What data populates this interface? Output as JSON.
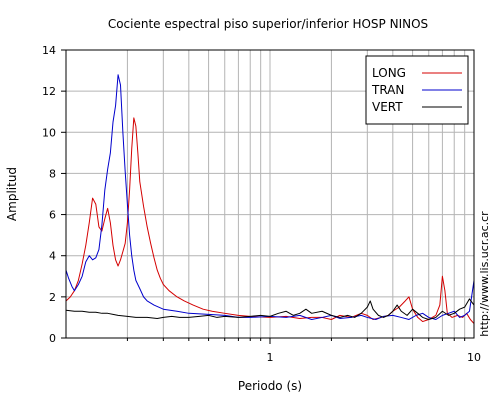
{
  "chart_data": {
    "type": "line",
    "title": "Cociente espectral piso superior/inferior  HOSP NINOS",
    "xlabel": "Periodo (s)",
    "ylabel": "Amplitud",
    "xscale": "log",
    "xlim": [
      0.1,
      10
    ],
    "ylim": [
      0,
      14
    ],
    "xticks": [
      1,
      10
    ],
    "xtick_labels": [
      "1",
      "10"
    ],
    "yticks": [
      0,
      2,
      4,
      6,
      8,
      10,
      12,
      14
    ],
    "ytick_labels": [
      "0",
      "2",
      "4",
      "6",
      "8",
      "10",
      "12",
      "14"
    ],
    "grid": true,
    "legend_position": "top-right",
    "side_text": "http://www.lis.ucr.ac.cr",
    "series": [
      {
        "name": "LONG",
        "color": "#d40000",
        "points": [
          [
            0.1,
            1.8
          ],
          [
            0.105,
            2.0
          ],
          [
            0.11,
            2.3
          ],
          [
            0.115,
            2.8
          ],
          [
            0.12,
            3.6
          ],
          [
            0.125,
            4.5
          ],
          [
            0.13,
            5.6
          ],
          [
            0.135,
            6.8
          ],
          [
            0.14,
            6.5
          ],
          [
            0.145,
            5.4
          ],
          [
            0.15,
            5.2
          ],
          [
            0.155,
            5.8
          ],
          [
            0.16,
            6.3
          ],
          [
            0.165,
            5.6
          ],
          [
            0.17,
            4.5
          ],
          [
            0.175,
            3.8
          ],
          [
            0.18,
            3.5
          ],
          [
            0.185,
            3.8
          ],
          [
            0.19,
            4.2
          ],
          [
            0.195,
            4.6
          ],
          [
            0.2,
            5.6
          ],
          [
            0.205,
            7.2
          ],
          [
            0.21,
            9.2
          ],
          [
            0.215,
            10.7
          ],
          [
            0.22,
            10.3
          ],
          [
            0.225,
            9.0
          ],
          [
            0.23,
            7.6
          ],
          [
            0.24,
            6.4
          ],
          [
            0.25,
            5.4
          ],
          [
            0.26,
            4.6
          ],
          [
            0.27,
            3.9
          ],
          [
            0.28,
            3.3
          ],
          [
            0.29,
            2.9
          ],
          [
            0.3,
            2.6
          ],
          [
            0.32,
            2.3
          ],
          [
            0.35,
            2.0
          ],
          [
            0.38,
            1.8
          ],
          [
            0.42,
            1.6
          ],
          [
            0.47,
            1.4
          ],
          [
            0.52,
            1.3
          ],
          [
            0.6,
            1.2
          ],
          [
            0.7,
            1.1
          ],
          [
            0.8,
            1.05
          ],
          [
            1.0,
            1.0
          ],
          [
            1.2,
            1.05
          ],
          [
            1.4,
            0.95
          ],
          [
            1.6,
            1.0
          ],
          [
            1.8,
            1.0
          ],
          [
            2.0,
            0.9
          ],
          [
            2.2,
            1.1
          ],
          [
            2.5,
            1.0
          ],
          [
            2.8,
            1.2
          ],
          [
            3.0,
            1.1
          ],
          [
            3.2,
            0.9
          ],
          [
            3.5,
            1.0
          ],
          [
            3.8,
            1.1
          ],
          [
            4.0,
            1.3
          ],
          [
            4.3,
            1.5
          ],
          [
            4.6,
            1.8
          ],
          [
            4.8,
            2.0
          ],
          [
            5.0,
            1.4
          ],
          [
            5.3,
            1.0
          ],
          [
            5.6,
            0.8
          ],
          [
            6.0,
            0.9
          ],
          [
            6.5,
            1.1
          ],
          [
            6.8,
            1.6
          ],
          [
            7.0,
            3.0
          ],
          [
            7.2,
            2.3
          ],
          [
            7.4,
            1.2
          ],
          [
            7.8,
            1.0
          ],
          [
            8.3,
            1.1
          ],
          [
            8.8,
            1.0
          ],
          [
            9.2,
            1.2
          ],
          [
            9.6,
            0.9
          ],
          [
            10.0,
            0.7
          ]
        ]
      },
      {
        "name": "TRAN",
        "color": "#0000cc",
        "points": [
          [
            0.1,
            3.3
          ],
          [
            0.103,
            2.9
          ],
          [
            0.107,
            2.5
          ],
          [
            0.11,
            2.3
          ],
          [
            0.115,
            2.6
          ],
          [
            0.12,
            3.0
          ],
          [
            0.125,
            3.7
          ],
          [
            0.13,
            4.0
          ],
          [
            0.135,
            3.8
          ],
          [
            0.14,
            3.9
          ],
          [
            0.145,
            4.3
          ],
          [
            0.15,
            5.5
          ],
          [
            0.155,
            7.2
          ],
          [
            0.16,
            8.2
          ],
          [
            0.165,
            9.0
          ],
          [
            0.17,
            10.5
          ],
          [
            0.175,
            11.3
          ],
          [
            0.18,
            12.8
          ],
          [
            0.185,
            12.3
          ],
          [
            0.19,
            10.0
          ],
          [
            0.195,
            8.1
          ],
          [
            0.2,
            6.5
          ],
          [
            0.205,
            5.0
          ],
          [
            0.21,
            4.0
          ],
          [
            0.215,
            3.3
          ],
          [
            0.22,
            2.8
          ],
          [
            0.23,
            2.4
          ],
          [
            0.24,
            2.0
          ],
          [
            0.25,
            1.8
          ],
          [
            0.27,
            1.6
          ],
          [
            0.3,
            1.4
          ],
          [
            0.35,
            1.3
          ],
          [
            0.4,
            1.2
          ],
          [
            0.5,
            1.15
          ],
          [
            0.6,
            1.1
          ],
          [
            0.7,
            1.0
          ],
          [
            0.8,
            1.0
          ],
          [
            1.0,
            1.05
          ],
          [
            1.2,
            1.0
          ],
          [
            1.4,
            1.1
          ],
          [
            1.6,
            0.9
          ],
          [
            1.8,
            1.0
          ],
          [
            2.0,
            1.1
          ],
          [
            2.2,
            0.95
          ],
          [
            2.5,
            1.0
          ],
          [
            2.8,
            1.1
          ],
          [
            3.0,
            1.0
          ],
          [
            3.3,
            0.9
          ],
          [
            3.6,
            1.05
          ],
          [
            4.0,
            1.1
          ],
          [
            4.4,
            1.0
          ],
          [
            4.8,
            0.9
          ],
          [
            5.2,
            1.1
          ],
          [
            5.6,
            1.2
          ],
          [
            6.0,
            1.0
          ],
          [
            6.5,
            0.9
          ],
          [
            7.0,
            1.1
          ],
          [
            7.5,
            1.2
          ],
          [
            8.0,
            1.3
          ],
          [
            8.5,
            1.0
          ],
          [
            9.0,
            1.1
          ],
          [
            9.5,
            1.3
          ],
          [
            10.0,
            2.8
          ]
        ]
      },
      {
        "name": "VERT",
        "color": "#000000",
        "points": [
          [
            0.1,
            1.35
          ],
          [
            0.11,
            1.3
          ],
          [
            0.12,
            1.3
          ],
          [
            0.13,
            1.25
          ],
          [
            0.14,
            1.25
          ],
          [
            0.15,
            1.2
          ],
          [
            0.16,
            1.2
          ],
          [
            0.17,
            1.15
          ],
          [
            0.18,
            1.1
          ],
          [
            0.2,
            1.05
          ],
          [
            0.22,
            1.0
          ],
          [
            0.25,
            1.0
          ],
          [
            0.28,
            0.95
          ],
          [
            0.3,
            1.0
          ],
          [
            0.33,
            1.05
          ],
          [
            0.36,
            1.0
          ],
          [
            0.4,
            1.0
          ],
          [
            0.45,
            1.05
          ],
          [
            0.5,
            1.1
          ],
          [
            0.55,
            1.0
          ],
          [
            0.6,
            1.05
          ],
          [
            0.7,
            1.0
          ],
          [
            0.8,
            1.05
          ],
          [
            0.9,
            1.1
          ],
          [
            1.0,
            1.05
          ],
          [
            1.1,
            1.2
          ],
          [
            1.2,
            1.3
          ],
          [
            1.3,
            1.1
          ],
          [
            1.4,
            1.2
          ],
          [
            1.5,
            1.4
          ],
          [
            1.6,
            1.2
          ],
          [
            1.8,
            1.3
          ],
          [
            2.0,
            1.1
          ],
          [
            2.2,
            1.0
          ],
          [
            2.4,
            1.1
          ],
          [
            2.6,
            1.0
          ],
          [
            2.8,
            1.2
          ],
          [
            3.0,
            1.5
          ],
          [
            3.1,
            1.8
          ],
          [
            3.2,
            1.4
          ],
          [
            3.4,
            1.1
          ],
          [
            3.6,
            1.0
          ],
          [
            3.8,
            1.1
          ],
          [
            4.0,
            1.3
          ],
          [
            4.2,
            1.6
          ],
          [
            4.4,
            1.3
          ],
          [
            4.7,
            1.1
          ],
          [
            5.0,
            1.4
          ],
          [
            5.3,
            1.2
          ],
          [
            5.6,
            1.0
          ],
          [
            6.0,
            0.9
          ],
          [
            6.5,
            1.0
          ],
          [
            7.0,
            1.3
          ],
          [
            7.5,
            1.1
          ],
          [
            8.0,
            1.2
          ],
          [
            8.5,
            1.4
          ],
          [
            9.0,
            1.5
          ],
          [
            9.5,
            1.9
          ],
          [
            10.0,
            1.6
          ]
        ]
      }
    ]
  }
}
